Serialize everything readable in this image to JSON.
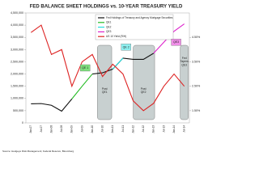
{
  "chart_data": {
    "type": "line",
    "title": "FED BALANCE SHEET HOLDINGS vs. 10-YEAR TREASURY YIELD",
    "source": "Source: Hedgeye Risk Management; Federal Reserve; Bloomberg",
    "categories": [
      "Jan-07",
      "Jul-07",
      "Jan-08",
      "Jul-08",
      "Jan-09",
      "Jul-09",
      "Jan-10",
      "Jul-10",
      "Jan-11",
      "Jul-11",
      "Jan-12",
      "Jul-12",
      "Jan-13",
      "Jul-13",
      "Jan-14",
      "Jul-14"
    ],
    "ylim": [
      0,
      4500000
    ],
    "yticks": [
      {
        "value": 0,
        "label": "0"
      },
      {
        "value": 500000,
        "label": "500,000"
      },
      {
        "value": 1000000,
        "label": "1,000,000"
      },
      {
        "value": 1500000,
        "label": "1,500,000"
      },
      {
        "value": 2000000,
        "label": "2,000,000"
      },
      {
        "value": 2500000,
        "label": "2,500,000"
      },
      {
        "value": 3000000,
        "label": "3,000,000"
      },
      {
        "value": 3500000,
        "label": "3,500,000"
      },
      {
        "value": 4000000,
        "label": "4,000,000"
      },
      {
        "value": 4500000,
        "label": "4,500,000"
      }
    ],
    "y2lim": [
      1.0,
      5.5
    ],
    "y2ticks": [
      {
        "value": 1.5,
        "label": "1.50%"
      },
      {
        "value": 2.5,
        "label": "2.50%"
      },
      {
        "value": 3.5,
        "label": "3.50%"
      },
      {
        "value": 4.5,
        "label": "4.50%"
      }
    ],
    "series": [
      {
        "name": "Fed Holdings of Treasury and Agency Mortgage Securities",
        "color": "#111111",
        "values": [
          780000,
          790000,
          720000,
          480000,
          980000,
          null,
          2000000,
          2050000,
          2200000,
          2650000,
          2600000,
          2600000,
          2850000,
          null,
          null,
          null
        ]
      },
      {
        "name": "QE1",
        "color": "#22bb22",
        "values": [
          null,
          null,
          null,
          null,
          980000,
          1500000,
          2000000,
          null,
          null,
          null,
          null,
          null,
          null,
          null,
          null,
          null
        ]
      },
      {
        "name": "QE2",
        "color": "#22dddd",
        "values": [
          null,
          null,
          null,
          null,
          null,
          null,
          null,
          null,
          2200000,
          2650000,
          null,
          null,
          null,
          null,
          null,
          null
        ]
      },
      {
        "name": "QE3",
        "color": "#dd22cc",
        "values": [
          null,
          null,
          null,
          null,
          null,
          null,
          null,
          null,
          null,
          null,
          null,
          null,
          2850000,
          3300000,
          3750000,
          4050000
        ]
      },
      {
        "name": "US 10 Yield (R/H)",
        "color": "#dd2222",
        "axis": "y2",
        "values": [
          4.7,
          5.0,
          3.8,
          4.0,
          2.5,
          3.5,
          3.8,
          2.9,
          3.4,
          3.0,
          1.9,
          1.5,
          1.8,
          2.5,
          3.0,
          2.5
        ]
      }
    ],
    "annotations": [
      "QE 1",
      "Post QE1",
      "QE 2",
      "Post QE2",
      "QE3",
      "Fed Tapers QE3"
    ]
  }
}
